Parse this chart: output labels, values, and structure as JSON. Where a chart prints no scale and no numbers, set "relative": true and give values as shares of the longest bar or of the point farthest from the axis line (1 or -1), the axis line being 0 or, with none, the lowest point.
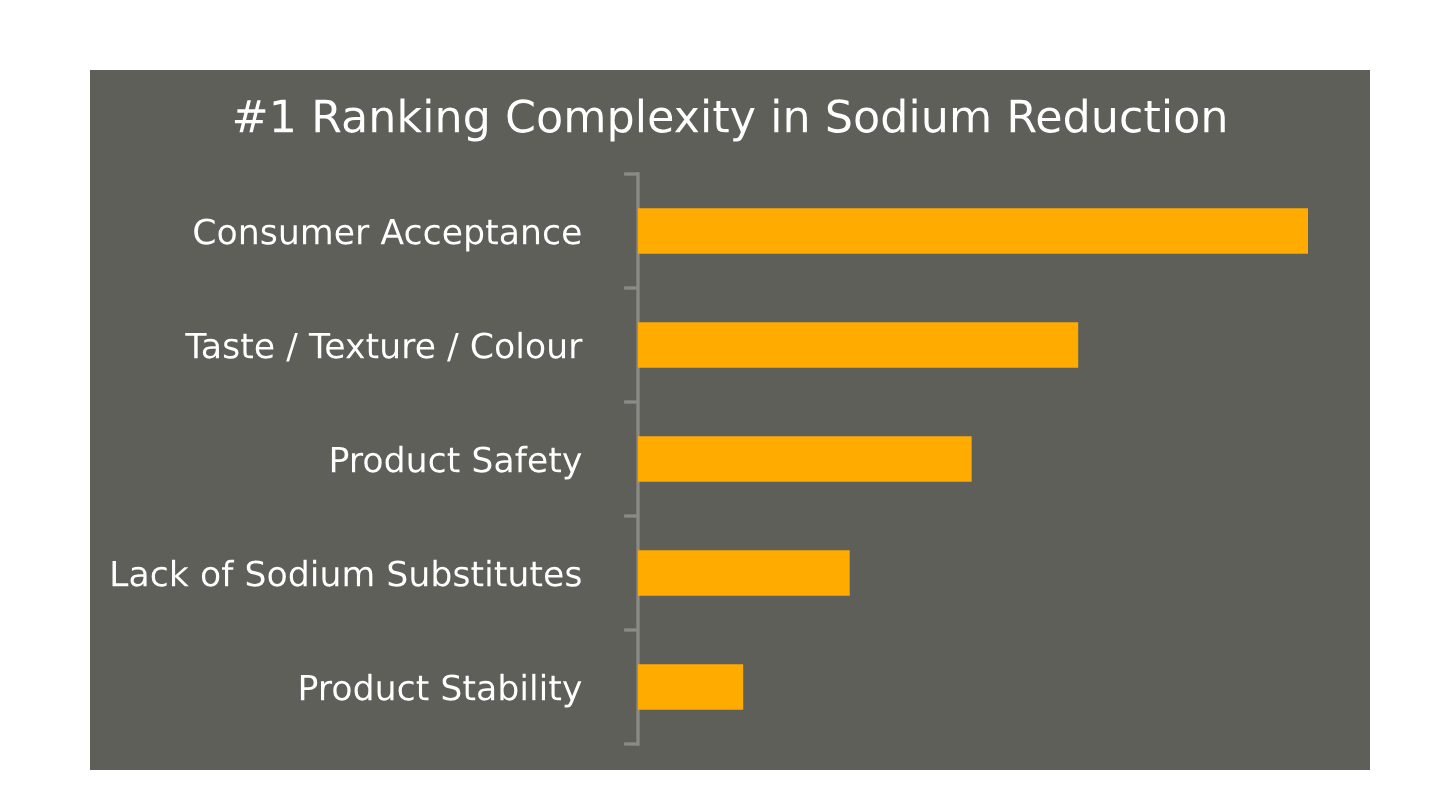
{
  "chart_data": {
    "type": "bar",
    "orientation": "horizontal",
    "relative": true,
    "title": "#1 Ranking Complexity in Sodium Reduction",
    "categories": [
      "Consumer Acceptance",
      "Taste / Texture / Colour",
      "Product Safety",
      "Lack of Sodium Substitutes",
      "Product Stability"
    ],
    "values": [
      1,
      0.657,
      0.498,
      0.316,
      0.157
    ],
    "color": "#ffab00",
    "grid": false,
    "legend": false
  }
}
